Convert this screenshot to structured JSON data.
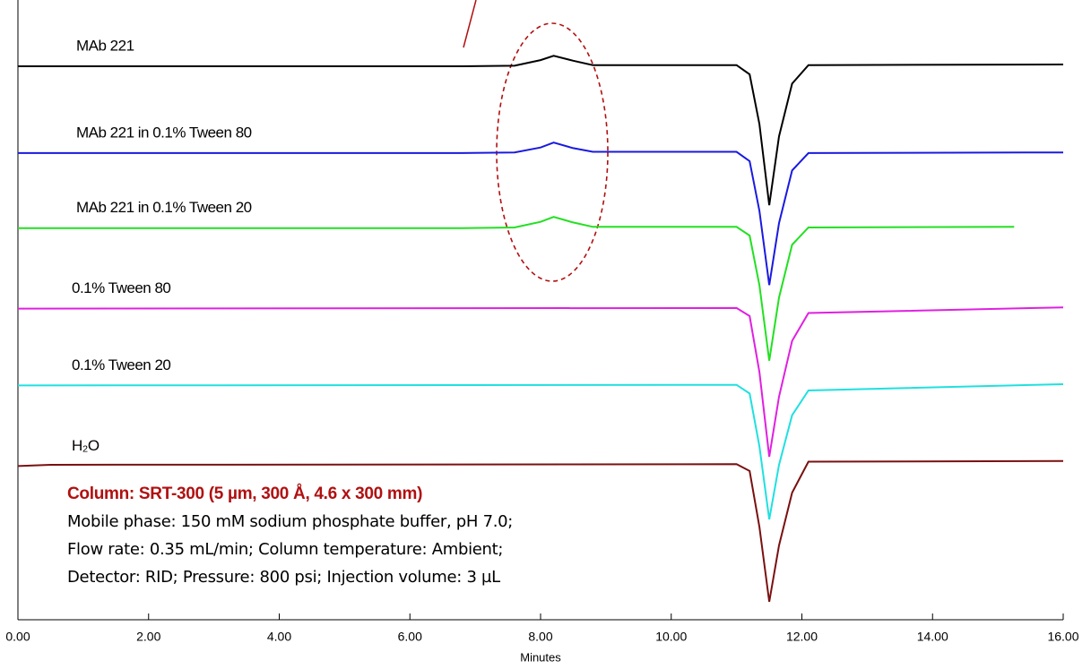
{
  "chart_data": {
    "type": "line",
    "xlabel": "Minutes",
    "xlim": [
      0,
      16
    ],
    "xticks": [
      {
        "value": 0,
        "label": "0.00"
      },
      {
        "value": 2,
        "label": "2.00"
      },
      {
        "value": 4,
        "label": "4.00"
      },
      {
        "value": 6,
        "label": "6.00"
      },
      {
        "value": 8,
        "label": "8.00"
      },
      {
        "value": 10,
        "label": "10.00"
      },
      {
        "value": 12,
        "label": "12.00"
      },
      {
        "value": 14,
        "label": "14.00"
      },
      {
        "value": 16,
        "label": "16.00"
      }
    ],
    "ylim": [
      0,
      100
    ],
    "series": [
      {
        "name": "MAb 221",
        "color": "#000000",
        "x": [
          0,
          6.8,
          7.6,
          8.0,
          8.2,
          8.5,
          8.8,
          11.0,
          11.2,
          11.35,
          11.5,
          11.65,
          11.85,
          12.1,
          16
        ],
        "values": [
          89.3,
          89.3,
          89.4,
          90.3,
          91,
          90.2,
          89.5,
          89.5,
          88,
          80,
          66.9,
          78,
          86.5,
          89.5,
          89.6
        ]
      },
      {
        "name": "MAb 221 in 0.1% Tween 80",
        "color": "#1a1adf",
        "x": [
          0,
          6.8,
          7.6,
          8.0,
          8.2,
          8.5,
          8.8,
          11.0,
          11.2,
          11.35,
          11.5,
          11.65,
          11.85,
          12.1,
          16
        ],
        "values": [
          75.3,
          75.3,
          75.4,
          76.2,
          77,
          76.1,
          75.5,
          75.5,
          74,
          66,
          54,
          64,
          72.5,
          75.3,
          75.4
        ]
      },
      {
        "name": "MAb 221 in 0.1% Tween 20",
        "color": "#22e022",
        "x": [
          0,
          6.8,
          7.6,
          8.0,
          8.2,
          8.5,
          8.8,
          11.0,
          11.2,
          11.35,
          11.5,
          11.65,
          11.85,
          12.1,
          15.25
        ],
        "values": [
          63.2,
          63.2,
          63.3,
          64.2,
          65,
          64.1,
          63.4,
          63.4,
          62,
          54,
          41.8,
          52,
          60.5,
          63.3,
          63.4
        ]
      },
      {
        "name": "0.1% Tween 80",
        "color": "#e020e0",
        "x": [
          0,
          11.0,
          11.2,
          11.35,
          11.5,
          11.65,
          11.85,
          12.1,
          16
        ],
        "values": [
          50.2,
          50.3,
          49,
          40,
          26.3,
          36,
          45,
          49.5,
          50.4
        ]
      },
      {
        "name": "0.1% Tween 20",
        "color": "#20e0e0",
        "x": [
          0,
          11.0,
          11.2,
          11.35,
          11.5,
          11.65,
          11.85,
          12.1,
          16
        ],
        "values": [
          37.8,
          37.9,
          36.5,
          28,
          16.2,
          25,
          33,
          37,
          38
        ]
      },
      {
        "name": "H₂O",
        "color": "#7a1010",
        "x": [
          0,
          0.5,
          11.0,
          11.2,
          11.35,
          11.5,
          11.65,
          11.85,
          12.1,
          16
        ],
        "values": [
          24.8,
          25.0,
          25.1,
          24,
          15,
          2.9,
          12,
          20.5,
          25.5,
          25.6
        ]
      }
    ],
    "annotations": [
      "Column: SRT-300 (5 µm, 300 Å, 4.6 x 300 mm)",
      "Mobile phase: 150 mM sodium phosphate buffer, pH 7.0;",
      "Flow rate: 0.35 mL/min; Column temperature: Ambient;",
      "Detector: RID; Pressure: 800 psi; Injection volume: 3 µL"
    ]
  }
}
